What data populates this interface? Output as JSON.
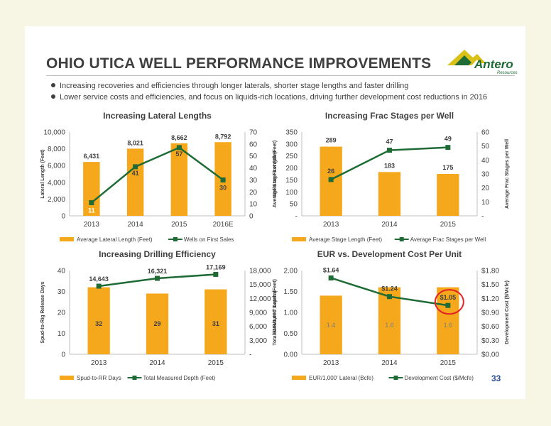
{
  "slide": {
    "title": "OHIO UTICA WELL PERFORMANCE IMPROVEMENTS",
    "bullets": [
      "Increasing recoveries and efficiencies through longer laterals, shorter stage lengths and faster drilling",
      "Lower service costs and efficiencies, and focus on liquids-rich locations, driving further development cost reductions in 2016"
    ],
    "page_number": "33",
    "logo": {
      "text": "Antero",
      "subtext": "Resources",
      "icon": "mountain-logo-icon"
    },
    "colors": {
      "bar": "#f5a81c",
      "line": "#1e6b35",
      "title": "#3f3f3f",
      "highlight_circle": "#e41f26"
    }
  },
  "chart_data": [
    {
      "type": "bar",
      "title": "Increasing Lateral Lengths",
      "categories": [
        "2013",
        "2014",
        "2015",
        "2016E"
      ],
      "series": [
        {
          "name": "Average Lateral Length (Feet)",
          "type": "bar",
          "axis": "left",
          "values": [
            6431,
            8021,
            8662,
            8792
          ],
          "labels": [
            "6,431",
            "8,021",
            "8,662",
            "8,792"
          ]
        },
        {
          "name": "Wells on First Sales",
          "type": "line",
          "axis": "right",
          "values": [
            11,
            41,
            57,
            30
          ],
          "labels": [
            "11",
            "41",
            "57",
            "30"
          ]
        }
      ],
      "ylabel": "Lateral Length (Feet)",
      "y2label": "Wells on First Sales",
      "ylim": [
        0,
        10000
      ],
      "y2lim": [
        0,
        70
      ],
      "yticks": [
        "0",
        "2,000",
        "4,000",
        "6,000",
        "8,000",
        "10,000"
      ],
      "y2ticks": [
        "0",
        "10",
        "20",
        "30",
        "40",
        "50",
        "60",
        "70"
      ]
    },
    {
      "type": "bar",
      "title": "Increasing Frac Stages per Well",
      "categories": [
        "2013",
        "2014",
        "2015"
      ],
      "series": [
        {
          "name": "Average Stage Length (Feet)",
          "type": "bar",
          "axis": "left",
          "values": [
            289,
            183,
            175
          ],
          "labels": [
            "289",
            "183",
            "175"
          ]
        },
        {
          "name": "Average Frac Stages per Well",
          "type": "line",
          "axis": "right",
          "values": [
            26,
            47,
            49
          ],
          "labels": [
            "26",
            "47",
            "49"
          ]
        }
      ],
      "ylabel": "Average Stage Length (Feet)",
      "y2label": "Average Frac Stages per Well",
      "ylim": [
        0,
        350
      ],
      "y2lim": [
        0,
        60
      ],
      "yticks": [
        "-",
        "50",
        "100",
        "150",
        "200",
        "250",
        "300",
        "350"
      ],
      "y2ticks": [
        "-",
        "10",
        "20",
        "30",
        "40",
        "50",
        "60"
      ]
    },
    {
      "type": "bar",
      "title": "Increasing Drilling Efficiency",
      "categories": [
        "2013",
        "2014",
        "2015"
      ],
      "series": [
        {
          "name": "Spud-to-RR Days",
          "type": "bar",
          "axis": "left",
          "values": [
            32,
            29,
            31
          ],
          "labels": [
            "32",
            "29",
            "31"
          ]
        },
        {
          "name": "Total Measured Depth (Feet)",
          "type": "line",
          "axis": "right",
          "values": [
            14643,
            16321,
            17169
          ],
          "labels": [
            "14,643",
            "16,321",
            "17,169"
          ]
        }
      ],
      "ylabel": "Spud-to-Rig Release Days",
      "y2label": "Total Measured Depth (Feet)",
      "ylim": [
        0,
        40
      ],
      "y2lim": [
        0,
        18000
      ],
      "yticks": [
        "0",
        "10",
        "20",
        "30",
        "40"
      ],
      "y2ticks": [
        "-",
        "3,000",
        "6,000",
        "9,000",
        "12,000",
        "15,000",
        "18,000"
      ]
    },
    {
      "type": "bar",
      "title": "EUR vs. Development Cost Per Unit",
      "categories": [
        "2013",
        "2014",
        "2015"
      ],
      "series": [
        {
          "name": "EUR/1,000' Lateral (Bcfe)",
          "type": "bar",
          "axis": "left",
          "values": [
            1.4,
            1.6,
            1.6
          ],
          "labels": [
            "1.4",
            "1.6",
            "1.6"
          ]
        },
        {
          "name": "Development Cost ($/Mcfe)",
          "type": "line",
          "axis": "right",
          "values": [
            1.64,
            1.24,
            1.05
          ],
          "labels": [
            "$1.64",
            "$1.24",
            "$1.05"
          ]
        }
      ],
      "ylabel": "EUR/1,000' Lateral",
      "y2label": "Development Cost ($/Mcfe)",
      "ylim": [
        0,
        2.0
      ],
      "y2lim": [
        0,
        1.8
      ],
      "yticks": [
        "0.00",
        "0.50",
        "1.00",
        "1.50",
        "2.00"
      ],
      "y2ticks": [
        "$0.00",
        "$0.30",
        "$0.60",
        "$0.90",
        "$1.20",
        "$1.50",
        "$1.80"
      ],
      "highlight": "$1.05"
    }
  ]
}
